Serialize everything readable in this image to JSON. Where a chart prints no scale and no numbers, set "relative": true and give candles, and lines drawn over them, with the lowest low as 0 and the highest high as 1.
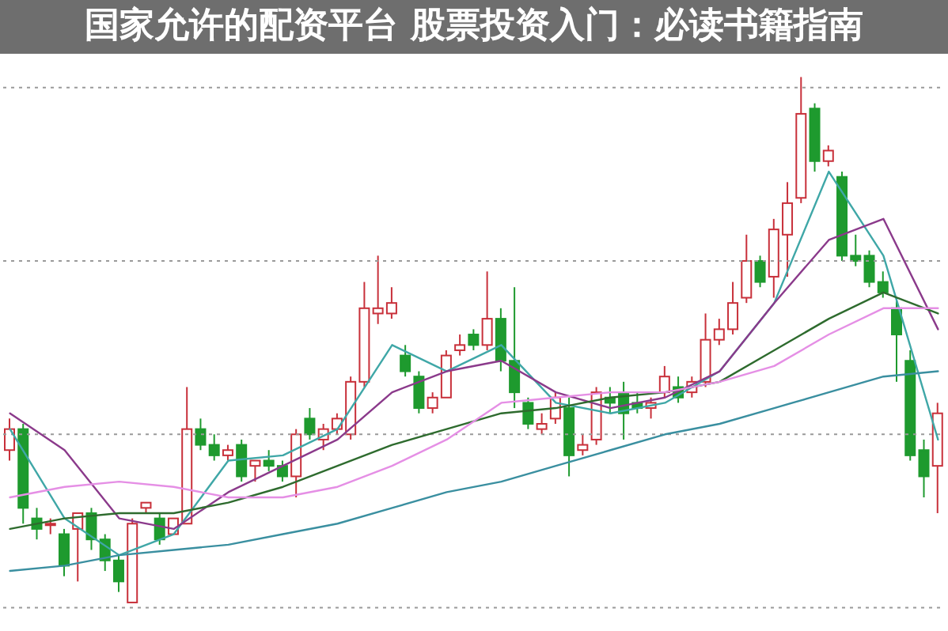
{
  "chart_data": {
    "type": "candlestick",
    "title": "国家允许的配资平台 股票投资入门：必读书籍指南",
    "relative": true,
    "ref_lines": [
      {
        "axis": "y",
        "value": 0.98,
        "color": "#9a9a9a",
        "line_style": "dotted"
      },
      {
        "axis": "y",
        "value": 0.65,
        "color": "#9a9a9a",
        "line_style": "dotted"
      },
      {
        "axis": "y",
        "value": 0.32,
        "color": "#9a9a9a",
        "line_style": "dotted"
      },
      {
        "axis": "y",
        "value": -0.01,
        "color": "#9a9a9a",
        "line_style": "dotted"
      }
    ],
    "categories": [
      null,
      null,
      null,
      null,
      null,
      null,
      null,
      null,
      null,
      null,
      null,
      null,
      null,
      null,
      null,
      null,
      null,
      null,
      null,
      null,
      null,
      null,
      null,
      null,
      null,
      null,
      null,
      null,
      null,
      null,
      null,
      null,
      null,
      null,
      null,
      null,
      null,
      null,
      null,
      null,
      null,
      null,
      null,
      null,
      null,
      null,
      null,
      null,
      null,
      null,
      null,
      null,
      null,
      null,
      null,
      null,
      null,
      null,
      null,
      null,
      null,
      null,
      null,
      null,
      null,
      null,
      null,
      null,
      null
    ],
    "ohlc": [
      [
        0.29,
        0.35,
        0.27,
        0.33
      ],
      [
        0.33,
        0.34,
        0.15,
        0.18
      ],
      [
        0.16,
        0.18,
        0.12,
        0.14
      ],
      [
        0.15,
        0.16,
        0.13,
        0.15
      ],
      [
        0.13,
        0.14,
        0.05,
        0.07
      ],
      [
        0.14,
        0.17,
        0.04,
        0.17
      ],
      [
        0.17,
        0.18,
        0.1,
        0.12
      ],
      [
        0.12,
        0.13,
        0.06,
        0.08
      ],
      [
        0.08,
        0.09,
        0.02,
        0.04
      ],
      [
        0,
        0.16,
        0,
        0.15
      ],
      [
        0.18,
        0.19,
        0.17,
        0.19
      ],
      [
        0.16,
        0.17,
        0.11,
        0.12
      ],
      [
        0.13,
        0.16,
        0.13,
        0.16
      ],
      [
        0.15,
        0.41,
        0.15,
        0.33
      ],
      [
        0.33,
        0.35,
        0.29,
        0.3
      ],
      [
        0.3,
        0.32,
        0.27,
        0.28
      ],
      [
        0.28,
        0.3,
        0.27,
        0.29
      ],
      [
        0.3,
        0.31,
        0.23,
        0.24
      ],
      [
        0.26,
        0.27,
        0.23,
        0.27
      ],
      [
        0.27,
        0.29,
        0.25,
        0.26
      ],
      [
        0.26,
        0.27,
        0.23,
        0.24
      ],
      [
        0.24,
        0.33,
        0.2,
        0.32
      ],
      [
        0.35,
        0.37,
        0.31,
        0.32
      ],
      [
        0.31,
        0.34,
        0.29,
        0.33
      ],
      [
        0.33,
        0.36,
        0.32,
        0.35
      ],
      [
        0.32,
        0.43,
        0.31,
        0.42
      ],
      [
        0.42,
        0.61,
        0.41,
        0.56
      ],
      [
        0.55,
        0.66,
        0.53,
        0.56
      ],
      [
        0.55,
        0.6,
        0.54,
        0.57
      ],
      [
        0.47,
        0.49,
        0.43,
        0.44
      ],
      [
        0.43,
        0.44,
        0.36,
        0.37
      ],
      [
        0.37,
        0.4,
        0.36,
        0.39
      ],
      [
        0.39,
        0.48,
        0.39,
        0.47
      ],
      [
        0.48,
        0.51,
        0.47,
        0.49
      ],
      [
        0.51,
        0.52,
        0.48,
        0.49
      ],
      [
        0.49,
        0.63,
        0.48,
        0.54
      ],
      [
        0.54,
        0.56,
        0.44,
        0.46
      ],
      [
        0.46,
        0.6,
        0.37,
        0.4
      ],
      [
        0.38,
        0.39,
        0.33,
        0.34
      ],
      [
        0.33,
        0.36,
        0.32,
        0.34
      ],
      [
        0.35,
        0.4,
        0.34,
        0.39
      ],
      [
        0.37,
        0.39,
        0.24,
        0.28
      ],
      [
        0.29,
        0.32,
        0.28,
        0.3
      ],
      [
        0.31,
        0.41,
        0.3,
        0.4
      ],
      [
        0.39,
        0.41,
        0.36,
        0.38
      ],
      [
        0.4,
        0.42,
        0.31,
        0.36
      ],
      [
        0.38,
        0.4,
        0.36,
        0.37
      ],
      [
        0.37,
        0.39,
        0.35,
        0.38
      ],
      [
        0.4,
        0.45,
        0.39,
        0.43
      ],
      [
        0.41,
        0.43,
        0.38,
        0.39
      ],
      [
        0.4,
        0.43,
        0.39,
        0.42
      ],
      [
        0.42,
        0.55,
        0.41,
        0.5
      ],
      [
        0.5,
        0.54,
        0.49,
        0.52
      ],
      [
        0.52,
        0.61,
        0.51,
        0.57
      ],
      [
        0.58,
        0.7,
        0.57,
        0.65
      ],
      [
        0.65,
        0.66,
        0.6,
        0.61
      ],
      [
        0.62,
        0.73,
        0.58,
        0.71
      ],
      [
        0.7,
        0.8,
        0.62,
        0.76
      ],
      [
        0.77,
        1,
        0.76,
        0.93
      ],
      [
        0.94,
        0.95,
        0.82,
        0.84
      ],
      [
        0.84,
        0.87,
        0.83,
        0.86
      ],
      [
        0.81,
        0.82,
        0.65,
        0.66
      ],
      [
        0.66,
        0.7,
        0.64,
        0.65
      ],
      [
        0.66,
        0.67,
        0.6,
        0.61
      ],
      [
        0.61,
        0.63,
        0.58,
        0.59
      ],
      [
        0.56,
        0.58,
        0.42,
        0.51
      ],
      [
        0.46,
        0.48,
        0.27,
        0.28
      ],
      [
        0.29,
        0.31,
        0.2,
        0.24
      ],
      [
        0.26,
        0.38,
        0.17,
        0.36
      ]
    ],
    "series": [
      {
        "type": "line",
        "color": "#3fa7a7",
        "values": [
          0.33,
          null,
          null,
          null,
          0.16,
          null,
          null,
          null,
          0.09,
          null,
          null,
          null,
          0.13,
          null,
          null,
          null,
          0.27,
          null,
          null,
          null,
          0.28,
          null,
          null,
          null,
          0.33,
          null,
          null,
          null,
          0.49,
          null,
          null,
          null,
          0.44,
          null,
          null,
          null,
          0.49,
          null,
          null,
          null,
          0.38,
          null,
          null,
          null,
          0.36,
          null,
          null,
          null,
          0.38,
          null,
          null,
          null,
          0.44,
          null,
          null,
          null,
          0.57,
          null,
          null,
          null,
          0.82,
          null,
          null,
          null,
          0.66,
          null,
          null,
          null,
          0.31
        ]
      },
      {
        "type": "line",
        "color": "#8b3a8b",
        "values": [
          0.36,
          null,
          null,
          null,
          0.29,
          null,
          null,
          null,
          0.16,
          null,
          null,
          null,
          0.14,
          null,
          null,
          null,
          0.21,
          null,
          null,
          null,
          0.26,
          null,
          null,
          null,
          0.31,
          null,
          null,
          null,
          0.4,
          null,
          null,
          null,
          0.44,
          null,
          null,
          null,
          0.46,
          null,
          null,
          null,
          0.4,
          null,
          null,
          null,
          0.37,
          null,
          null,
          null,
          0.39,
          null,
          null,
          null,
          0.44,
          null,
          null,
          null,
          0.57,
          null,
          null,
          null,
          0.69,
          null,
          null,
          null,
          0.73,
          null,
          null,
          null,
          0.52
        ]
      },
      {
        "type": "line",
        "color": "#2e6b2e",
        "values": [
          0.14,
          null,
          null,
          null,
          0.16,
          null,
          null,
          null,
          0.17,
          null,
          null,
          null,
          0.17,
          null,
          null,
          null,
          0.19,
          null,
          null,
          null,
          0.22,
          null,
          null,
          null,
          0.26,
          null,
          null,
          null,
          0.3,
          null,
          null,
          null,
          0.33,
          null,
          null,
          null,
          0.36,
          null,
          null,
          null,
          0.37,
          null,
          null,
          null,
          0.39,
          null,
          null,
          null,
          0.4,
          null,
          null,
          null,
          0.42,
          null,
          null,
          null,
          0.48,
          null,
          null,
          null,
          0.54,
          null,
          null,
          null,
          0.59,
          null,
          null,
          null,
          0.55
        ]
      },
      {
        "type": "line",
        "color": "#e58fe5",
        "values": [
          0.2,
          null,
          null,
          null,
          0.22,
          null,
          null,
          null,
          0.23,
          null,
          null,
          null,
          0.22,
          null,
          null,
          null,
          0.2,
          null,
          null,
          null,
          0.2,
          null,
          null,
          null,
          0.22,
          null,
          null,
          null,
          0.26,
          null,
          null,
          null,
          0.31,
          null,
          null,
          null,
          0.38,
          null,
          null,
          null,
          0.39,
          null,
          null,
          null,
          0.4,
          null,
          null,
          null,
          0.4,
          null,
          null,
          null,
          0.42,
          null,
          null,
          null,
          0.45,
          null,
          null,
          null,
          0.51,
          null,
          null,
          null,
          0.56,
          null,
          null,
          null,
          0.56
        ]
      },
      {
        "type": "line",
        "color": "#3a8fa0",
        "values": [
          0.06,
          null,
          null,
          null,
          0.07,
          null,
          null,
          null,
          0.09,
          null,
          null,
          null,
          0.1,
          null,
          null,
          null,
          0.11,
          null,
          null,
          null,
          0.13,
          null,
          null,
          null,
          0.15,
          null,
          null,
          null,
          0.18,
          null,
          null,
          null,
          0.21,
          null,
          null,
          null,
          0.23,
          null,
          null,
          null,
          0.26,
          null,
          null,
          null,
          0.29,
          null,
          null,
          null,
          0.32,
          null,
          null,
          null,
          0.34,
          null,
          null,
          null,
          0.37,
          null,
          null,
          null,
          0.4,
          null,
          null,
          null,
          0.43,
          null,
          null,
          null,
          0.44
        ]
      }
    ]
  }
}
